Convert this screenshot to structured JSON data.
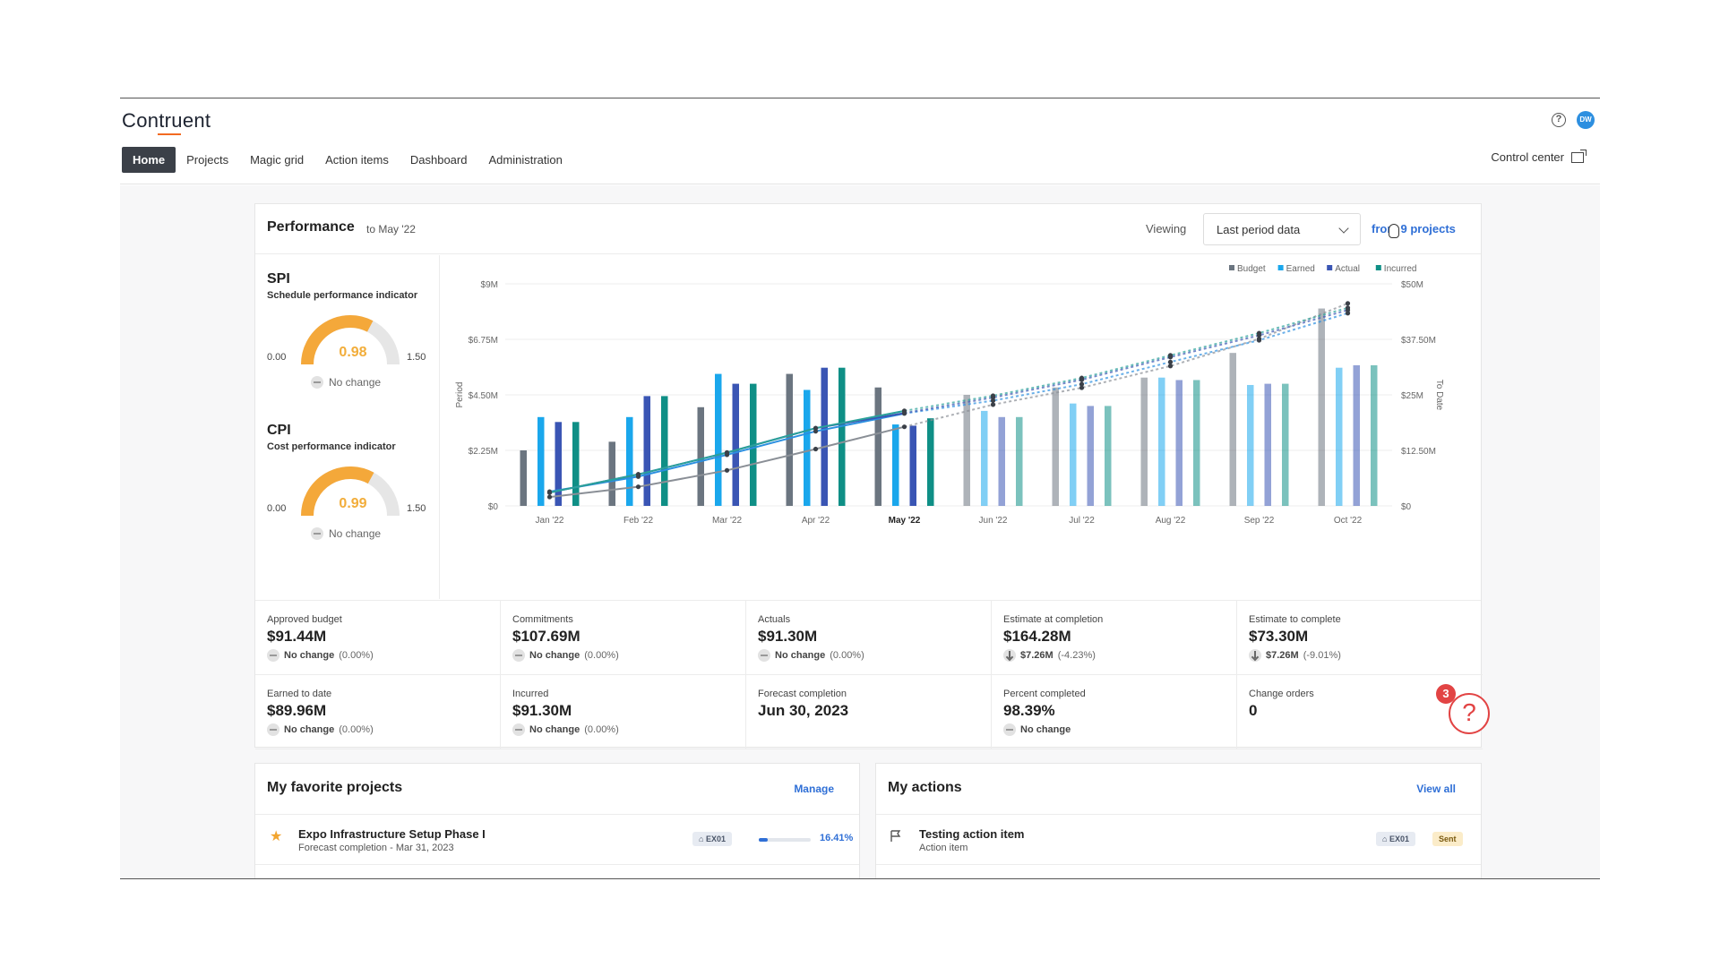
{
  "app": {
    "brand": "Contruent"
  },
  "user": {
    "initials": "DW"
  },
  "nav": {
    "items": [
      {
        "label": "Home",
        "active": true
      },
      {
        "label": "Projects"
      },
      {
        "label": "Magic grid"
      },
      {
        "label": "Action items"
      },
      {
        "label": "Dashboard"
      },
      {
        "label": "Administration"
      }
    ],
    "control_center": "Control center"
  },
  "performance": {
    "title": "Performance",
    "subtitle": "to May '22",
    "viewing_label": "Viewing",
    "viewing_value": "Last period data",
    "projects_link": "from 9 projects"
  },
  "kpis": [
    {
      "name": "SPI",
      "desc": "Schedule performance indicator",
      "min": "0.00",
      "max": "1.50",
      "value": "0.98",
      "fraction": 0.653,
      "change": "No change"
    },
    {
      "name": "CPI",
      "desc": "Cost performance indicator",
      "min": "0.00",
      "max": "1.50",
      "value": "0.99",
      "fraction": 0.66,
      "change": "No change"
    }
  ],
  "chart_data": {
    "type": "bar",
    "categories": [
      "Jan '22",
      "Feb '22",
      "Mar '22",
      "Apr '22",
      "May '22",
      "Jun '22",
      "Jul '22",
      "Aug '22",
      "Sep '22",
      "Oct '22"
    ],
    "current_index": 4,
    "ylabel": "Period",
    "y2label": "To Date",
    "ylim": [
      0,
      9
    ],
    "y_ticks": [
      "$0",
      "$2.25M",
      "$4.50M",
      "$6.75M",
      "$9M"
    ],
    "y2lim": [
      0,
      50
    ],
    "y2_ticks": [
      "$0",
      "$12.50M",
      "$25M",
      "$37.50M",
      "$50M"
    ],
    "legend": [
      "Budget",
      "Earned",
      "Actual",
      "Incurred"
    ],
    "legend_position": "top-right",
    "colors": {
      "Budget": "#6b7580",
      "Earned": "#1aa7ec",
      "Actual": "#3a55b4",
      "Incurred": "#0f8f86"
    },
    "series": [
      {
        "name": "Budget",
        "values": [
          2.25,
          2.6,
          4.0,
          5.35,
          4.8,
          4.5,
          4.8,
          5.2,
          6.2,
          8.0
        ]
      },
      {
        "name": "Earned",
        "values": [
          3.6,
          3.6,
          5.35,
          4.7,
          3.3,
          3.85,
          4.15,
          5.2,
          4.9,
          5.6
        ]
      },
      {
        "name": "Actual",
        "values": [
          3.4,
          4.45,
          4.95,
          5.6,
          3.25,
          3.6,
          4.05,
          5.1,
          4.95,
          5.7
        ]
      },
      {
        "name": "Incurred",
        "values": [
          3.4,
          4.45,
          4.95,
          5.6,
          3.55,
          3.6,
          4.05,
          5.1,
          4.95,
          5.7
        ]
      }
    ],
    "cumulative": [
      {
        "name": "Budget",
        "values": [
          2.0,
          4.3,
          8.0,
          12.8,
          17.8,
          22.8,
          26.6,
          31.5,
          37.6,
          45.6
        ]
      },
      {
        "name": "Earned",
        "values": [
          3.2,
          6.6,
          11.5,
          16.8,
          20.8,
          23.7,
          27.4,
          32.4,
          37.3,
          43.4
        ]
      },
      {
        "name": "Actual",
        "values": [
          3.0,
          7.1,
          12.0,
          17.5,
          20.9,
          24.4,
          28.4,
          33.5,
          38.4,
          44.1
        ]
      },
      {
        "name": "Incurred",
        "values": [
          3.0,
          7.1,
          12.0,
          17.5,
          21.4,
          24.8,
          28.8,
          33.9,
          38.9,
          44.6
        ]
      }
    ]
  },
  "metrics": [
    {
      "label": "Approved budget",
      "value": "$91.44M",
      "change_main": "No change",
      "change_sub": "(0.00%)",
      "trend": "flat"
    },
    {
      "label": "Commitments",
      "value": "$107.69M",
      "change_main": "No change",
      "change_sub": "(0.00%)",
      "trend": "flat"
    },
    {
      "label": "Actuals",
      "value": "$91.30M",
      "change_main": "No change",
      "change_sub": "(0.00%)",
      "trend": "flat"
    },
    {
      "label": "Estimate at completion",
      "value": "$164.28M",
      "change_main": "$7.26M",
      "change_sub": "(-4.23%)",
      "trend": "down"
    },
    {
      "label": "Estimate to complete",
      "value": "$73.30M",
      "change_main": "$7.26M",
      "change_sub": "(-9.01%)",
      "trend": "down"
    },
    {
      "label": "Earned to date",
      "value": "$89.96M",
      "change_main": "No change",
      "change_sub": "(0.00%)",
      "trend": "flat"
    },
    {
      "label": "Incurred",
      "value": "$91.30M",
      "change_main": "No change",
      "change_sub": "(0.00%)",
      "trend": "flat"
    },
    {
      "label": "Forecast completion",
      "value": "Jun 30, 2023",
      "change_main": "",
      "change_sub": "",
      "trend": "none"
    },
    {
      "label": "Percent completed",
      "value": "98.39%",
      "change_main": "No change",
      "change_sub": "",
      "trend": "flat"
    },
    {
      "label": "Change orders",
      "value": "0",
      "change_main": "",
      "change_sub": "",
      "trend": "none"
    }
  ],
  "favorites": {
    "title": "My favorite projects",
    "link": "Manage",
    "items": [
      {
        "name": "Expo Infrastructure Setup Phase I",
        "sub": "Forecast completion - Mar 31, 2023",
        "tag": "EX01",
        "progress": 0.1641,
        "progress_label": "16.41%"
      }
    ]
  },
  "actions": {
    "title": "My actions",
    "link": "View all",
    "items": [
      {
        "name": "Testing action item",
        "sub": "Action item",
        "tag": "EX01",
        "status": "Sent"
      }
    ]
  },
  "help": {
    "badge": "3",
    "glyph": "?"
  }
}
